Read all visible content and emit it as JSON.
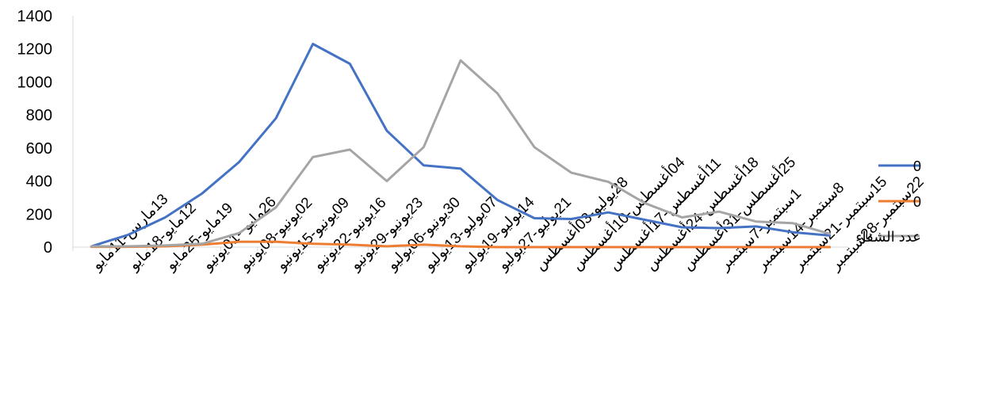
{
  "chart_data": {
    "type": "line",
    "title": "",
    "xlabel": "",
    "ylabel": "",
    "ylim": [
      0,
      1400
    ],
    "y_ticks": [
      0,
      200,
      400,
      600,
      800,
      1000,
      1200,
      1400
    ],
    "grid": false,
    "legend_position": "right",
    "categories": [
      "13مارس-11مايو",
      "12مايو-18مايو",
      "19مايو-25مايو",
      "26مايو--01يونيو",
      "02يونيو-08يونيو",
      "09يونيو-15يونيو",
      "16يونيو-22يونيو",
      "23يونيو-29يونيو",
      "30يونيو-06يوليو",
      "07يوليو-13يوليو",
      "14يوليو-19يوليو",
      "21يوليو-27يوليو",
      "28يوليو-03أغسطس",
      "04أغسطس-10أغسطس",
      "11أغسطس-17أغسطس",
      "18أغسطس-24أغسطس",
      "25أغسطس-31أغسطس",
      "1سبتمبر-7سبتمبر",
      "8سبتمبر-14سبتمبر",
      "15سبتمبر-21سبتمبر",
      "22سبتمبر-28سبتمبر"
    ],
    "series": [
      {
        "name": "0",
        "color": "#4472C4",
        "values": [
          5,
          75,
          180,
          325,
          515,
          780,
          1230,
          1110,
          705,
          495,
          475,
          285,
          175,
          170,
          210,
          165,
          120,
          115,
          125,
          90,
          70
        ]
      },
      {
        "name": "0",
        "color": "#ED7D31",
        "values": [
          2,
          2,
          5,
          15,
          32,
          32,
          20,
          15,
          5,
          15,
          5,
          0,
          0,
          0,
          0,
          0,
          0,
          0,
          0,
          0,
          0
        ]
      },
      {
        "name": "عدد الشفاء",
        "color": "#A5A5A5",
        "values": [
          5,
          5,
          10,
          20,
          85,
          240,
          545,
          590,
          400,
          605,
          1130,
          930,
          605,
          450,
          395,
          265,
          180,
          215,
          155,
          145,
          80
        ]
      }
    ]
  }
}
